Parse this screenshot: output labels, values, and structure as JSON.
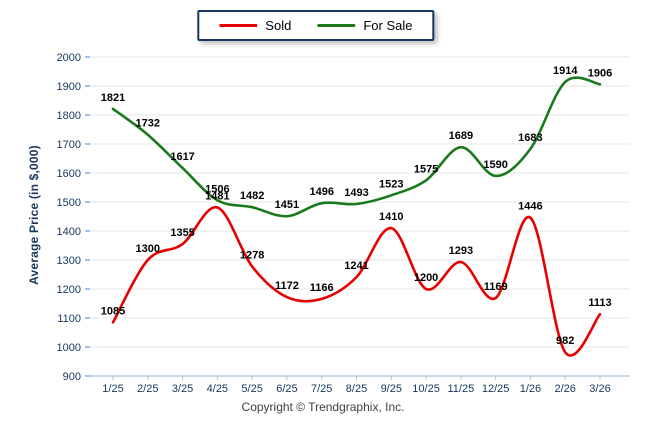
{
  "legend": {
    "items": [
      {
        "name": "sold",
        "label": "Sold",
        "color": "#e80000"
      },
      {
        "name": "for-sale",
        "label": "For Sale",
        "color": "#1a7a1a"
      }
    ]
  },
  "y_axis_title": "Average Price (in $,000)",
  "copyright": "Copyright © Trendgraphix, Inc.",
  "colors": {
    "sold_line": "#e80000",
    "for_sale_line": "#1a7a1a",
    "tick_label": "#16365c",
    "data_label": "#000000",
    "gridline": "#e4e4e4",
    "axis_line": "#a9c0d6",
    "y_tick": "#9dc3e6",
    "x_tick": "#bfbfbf",
    "legend_border": "#17375e"
  },
  "chart_data": {
    "type": "line",
    "title": "",
    "xlabel": "",
    "ylabel": "Average Price (in $,000)",
    "categories": [
      "1/25",
      "2/25",
      "3/25",
      "4/25",
      "5/25",
      "6/25",
      "7/25",
      "8/25",
      "9/25",
      "10/25",
      "11/25",
      "12/25",
      "1/26",
      "2/26",
      "3/26"
    ],
    "series": [
      {
        "name": "Sold",
        "color": "#e80000",
        "values": [
          1085,
          1300,
          1355,
          1481,
          1278,
          1172,
          1166,
          1241,
          1410,
          1200,
          1293,
          1169,
          1446,
          982,
          1113
        ]
      },
      {
        "name": "For Sale",
        "color": "#1a7a1a",
        "values": [
          1821,
          1732,
          1617,
          1506,
          1482,
          1451,
          1496,
          1493,
          1523,
          1575,
          1689,
          1590,
          1683,
          1914,
          1906
        ]
      }
    ],
    "ylim": [
      900,
      2000
    ],
    "ytick_step": 100,
    "grid": true,
    "smooth": true,
    "data_labels": true,
    "legend_position": "top-center"
  }
}
